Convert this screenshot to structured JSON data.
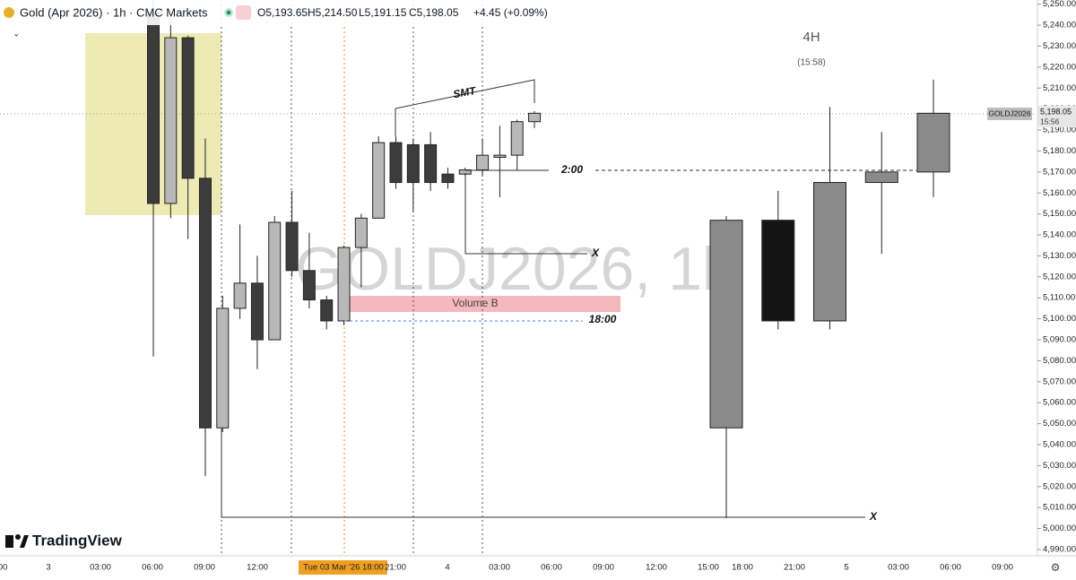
{
  "chart_data": {
    "type": "candlestick",
    "title": "Gold (Apr 2026) · 1h · CMC Markets",
    "ohlc_header": [
      "O5,193.65",
      "H5,214.50",
      "L5,191.15",
      "C5,198.05",
      "+4.45 (+0.09%)"
    ],
    "watermark": "GOLDJ2026, 1h",
    "brand": "TradingView",
    "ylim": [
      4987,
      5252
    ],
    "yticks": [
      {
        "value": 5250,
        "label": "5,250.00"
      },
      {
        "value": 5240,
        "label": "5,240.00"
      },
      {
        "value": 5230,
        "label": "5,230.00"
      },
      {
        "value": 5220,
        "label": "5,220.00"
      },
      {
        "value": 5210,
        "label": "5,210.00"
      },
      {
        "value": 5200,
        "label": "5,200.00"
      },
      {
        "value": 5190,
        "label": "5,190.00"
      },
      {
        "value": 5180,
        "label": "5,180.00"
      },
      {
        "value": 5170,
        "label": "5,170.00"
      },
      {
        "value": 5160,
        "label": "5,160.00"
      },
      {
        "value": 5150,
        "label": "5,150.00"
      },
      {
        "value": 5140,
        "label": "5,140.00"
      },
      {
        "value": 5130,
        "label": "5,130.00"
      },
      {
        "value": 5120,
        "label": "5,120.00"
      },
      {
        "value": 5110,
        "label": "5,110.00"
      },
      {
        "value": 5100,
        "label": "5,100.00"
      },
      {
        "value": 5090,
        "label": "5,090.00"
      },
      {
        "value": 5080,
        "label": "5,080.00"
      },
      {
        "value": 5070,
        "label": "5,070.00"
      },
      {
        "value": 5060,
        "label": "5,060.00"
      },
      {
        "value": 5050,
        "label": "5,050.00"
      },
      {
        "value": 5040,
        "label": "5,040.00"
      },
      {
        "value": 5030,
        "label": "5,030.00"
      },
      {
        "value": 5020,
        "label": "5,020.00"
      },
      {
        "value": 5010,
        "label": "5,010.00"
      },
      {
        "value": 5000,
        "label": "5,000.00"
      },
      {
        "value": 4990,
        "label": "4,990.00"
      }
    ],
    "xticks": [
      "00",
      "3",
      "03:00",
      "06:00",
      "09:00",
      "12:00",
      "Tue 03 Mar '26   18:00",
      "21:00",
      "4",
      "03:00",
      "06:00",
      "09:00",
      "12:00",
      "15:00",
      "18:00",
      "21:00",
      "5",
      "03:00",
      "06:00",
      "09:00"
    ],
    "series": [
      {
        "up_color": "#b8b8b8",
        "down_color": "#3c3c3c",
        "open": [
          5246,
          5155,
          5234,
          5167,
          5048,
          5105,
          5117,
          5090,
          5146,
          5123,
          5109,
          5099,
          5134,
          5148,
          5184,
          5183,
          5183,
          5169,
          5169,
          5171,
          5177,
          5178,
          5194
        ],
        "high": [
          5258,
          5243,
          5235,
          5186,
          5111,
          5145,
          5130,
          5149,
          5161,
          5141,
          5111,
          5135,
          5150,
          5187,
          5187,
          5186,
          5189,
          5172,
          5172,
          5186,
          5192,
          5195,
          5199
        ],
        "low": [
          5082,
          5148,
          5138,
          5025,
          5046,
          5100,
          5076,
          5090,
          5120,
          5105,
          5095,
          5097,
          5115,
          5148,
          5162,
          5151,
          5161,
          5162,
          5168,
          5168,
          5158,
          5171,
          5191
        ],
        "close": [
          5155,
          5234,
          5167,
          5048,
          5105,
          5117,
          5090,
          5146,
          5123,
          5109,
          5099,
          5134,
          5148,
          5184,
          5165,
          5165,
          5165,
          5165,
          5171,
          5178,
          5178,
          5194,
          5198
        ]
      },
      {
        "up_color": "#8a8a8a",
        "down_color": "#141414",
        "open": [
          5048,
          5147,
          5099,
          5165,
          5170
        ],
        "high": [
          5149,
          5161,
          5201,
          5189,
          5214
        ],
        "low": [
          5005,
          5095,
          5095,
          5131,
          5158
        ],
        "close": [
          5147,
          5099,
          5165,
          5170,
          5198
        ]
      }
    ],
    "price_label": {
      "symbol": "GOLDJ2026",
      "price": "5,198.05",
      "countdown": "15:56"
    },
    "annotations": [
      "SMT",
      "2:00",
      "18:00",
      "X",
      "X",
      "4H",
      "(15:58)",
      "Volume B"
    ]
  }
}
